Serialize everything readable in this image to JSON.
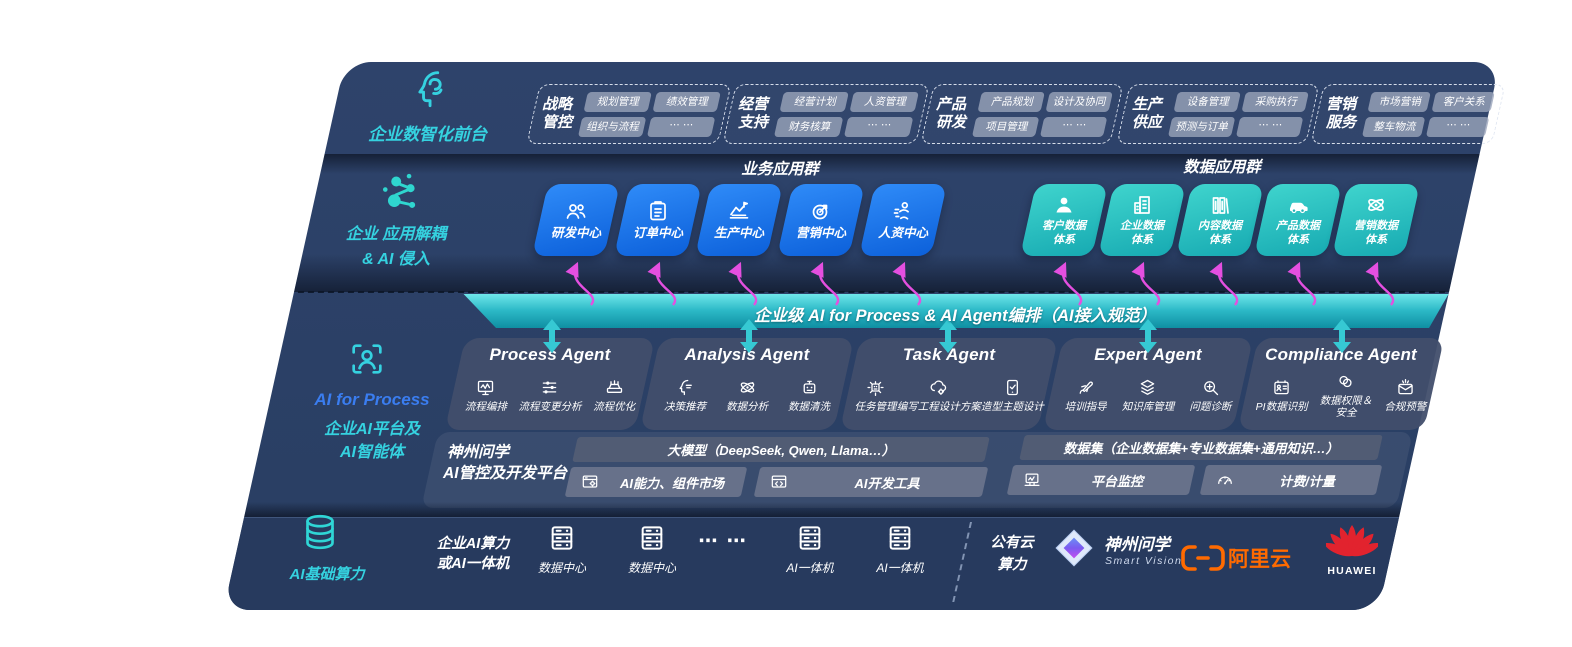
{
  "front_office": {
    "label": "企业数智化前台",
    "icon": "head-brain-icon",
    "groups": [
      {
        "title": "战略管控",
        "items": [
          "规划管理",
          "绩效管理",
          "组织与流程",
          "⋯ ⋯"
        ]
      },
      {
        "title": "经营支持",
        "items": [
          "经营计划",
          "人资管理",
          "财务核算",
          "⋯ ⋯"
        ]
      },
      {
        "title": "产品研发",
        "items": [
          "产品规划",
          "设计及协同",
          "项目管理",
          "⋯ ⋯"
        ]
      },
      {
        "title": "生产供应",
        "items": [
          "设备管理",
          "采购执行",
          "预测与订单",
          "⋯ ⋯"
        ]
      },
      {
        "title": "营销服务",
        "items": [
          "市场营销",
          "客户关系",
          "整车物流",
          "⋯ ⋯"
        ]
      }
    ]
  },
  "app_layer": {
    "label_line1": "企业 应用解耦",
    "label_line2": "& AI 侵入",
    "icon": "molecule-icon",
    "business_header": "业务应用群",
    "data_header": "数据应用群",
    "business_tiles": [
      {
        "icon": "people",
        "label": "研发中心"
      },
      {
        "icon": "clipboard",
        "label": "订单中心"
      },
      {
        "icon": "production",
        "label": "生产中心"
      },
      {
        "icon": "target",
        "label": "营销中心"
      },
      {
        "icon": "person-run",
        "label": "人资中心"
      }
    ],
    "data_tiles": [
      {
        "icon": "person-solid",
        "label": "客户数据体系"
      },
      {
        "icon": "building",
        "label": "企业数据体系"
      },
      {
        "icon": "books",
        "label": "内容数据体系"
      },
      {
        "icon": "car",
        "label": "产品数据体系"
      },
      {
        "icon": "atom",
        "label": "营销数据体系"
      }
    ]
  },
  "orchestration": {
    "label": "企业级 AI for Process & AI Agent编排（AI接入规范）"
  },
  "agent_layer": {
    "icon": "scan-person-icon",
    "label_en": "AI for Process",
    "label_zh1": "企业AI平台及",
    "label_zh2": "AI智能体",
    "agents": [
      {
        "title": "Process Agent",
        "items": [
          {
            "icon": "screen-wave",
            "label": "流程编排"
          },
          {
            "icon": "sliders",
            "label": "流程变更分析"
          },
          {
            "icon": "conveyor",
            "label": "流程优化"
          }
        ]
      },
      {
        "title": "Analysis Agent",
        "items": [
          {
            "icon": "head-chat",
            "label": "决策推荐"
          },
          {
            "icon": "atom",
            "label": "数据分析"
          },
          {
            "icon": "bot-doc",
            "label": "数据清洗"
          }
        ]
      },
      {
        "title": "Task Agent",
        "items": [
          {
            "icon": "grid-bot",
            "label": "任务管理"
          },
          {
            "icon": "cloud-gear",
            "label": "编写工程设计方案"
          },
          {
            "icon": "tablet-check",
            "label": "造型主题设计"
          }
        ]
      },
      {
        "title": "Expert Agent",
        "items": [
          {
            "icon": "rocket-pen",
            "label": "培训指导"
          },
          {
            "icon": "layers",
            "label": "知识库管理"
          },
          {
            "icon": "gear-search",
            "label": "问题诊断"
          }
        ]
      },
      {
        "title": "Compliance Agent",
        "items": [
          {
            "icon": "id-card",
            "label": "PI数据识别"
          },
          {
            "icon": "rings",
            "label": "数据权限＆安全",
            "wrap": true
          },
          {
            "icon": "mail-alert",
            "label": "合规预警"
          }
        ]
      }
    ]
  },
  "platform": {
    "name_line1": "神州问学",
    "name_line2": "AI管控及开发平台",
    "model_bar": "大模型（DeepSeek, Qwen, Llama…）",
    "dataset_bar": "数据集（企业数据集+专业数据集+通用知识…）",
    "cells": [
      {
        "icon": "market",
        "label": "AI能力、组件市场"
      },
      {
        "icon": "devtools",
        "label": "AI开发工具"
      },
      {
        "icon": "monitor",
        "label": "平台监控"
      },
      {
        "icon": "meter",
        "label": "计费/计量"
      }
    ]
  },
  "infra": {
    "label": "AI基础算力",
    "icon": "database-icon",
    "left_title_line1": "企业AI算力",
    "left_title_line2": "或AI一体机",
    "nodes": [
      {
        "icon": "server",
        "label": "数据中心"
      },
      {
        "icon": "server",
        "label": "数据中心"
      },
      {
        "icon": "dots",
        "label": "⋯ ⋯"
      },
      {
        "icon": "server",
        "label": "AI一体机"
      },
      {
        "icon": "server",
        "label": "AI一体机"
      }
    ],
    "cloud_line1": "公有云",
    "cloud_line2": "算力",
    "partners": [
      {
        "name": "神州问学",
        "sub": "Smart Vision",
        "icon": "diamond-logo"
      },
      {
        "name": "阿里云",
        "icon": "aliyun-brackets"
      },
      {
        "name": "HUAWEI",
        "icon": "huawei-fan"
      }
    ]
  },
  "colors": {
    "accent_cyan": "#35d2e0",
    "accent_blue": "#3a7df0",
    "tile_blue": "#1373e8",
    "tile_teal": "#2fc9c3",
    "bar_teal": "#1aa6b4",
    "arrow_pink": "#e44fe0",
    "aliyun_orange": "#ff6a00",
    "huawei_red": "#e2232e",
    "navy_bg": "#2b4066"
  }
}
